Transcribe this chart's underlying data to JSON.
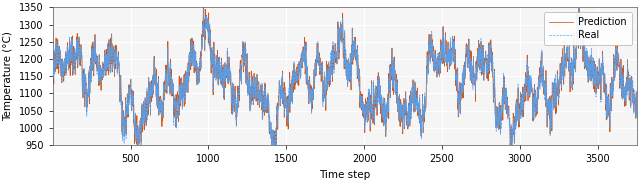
{
  "n": 3750,
  "seed": 42,
  "ylim": [
    950,
    1350
  ],
  "yticks": [
    950,
    1000,
    1050,
    1100,
    1150,
    1200,
    1250,
    1300,
    1350
  ],
  "xticks": [
    500,
    1000,
    1500,
    2000,
    2500,
    3000,
    3500
  ],
  "xlim": [
    0,
    3750
  ],
  "xlabel": "Time step",
  "ylabel": "Temperature (°C)",
  "legend_real": "Real",
  "legend_pred": "Prediction",
  "real_color": "#4da6ff",
  "pred_color": "#cc4400",
  "figsize": [
    6.4,
    1.83
  ],
  "dpi": 100,
  "linewidth": 0.55,
  "bg_color": "#f5f5f5"
}
